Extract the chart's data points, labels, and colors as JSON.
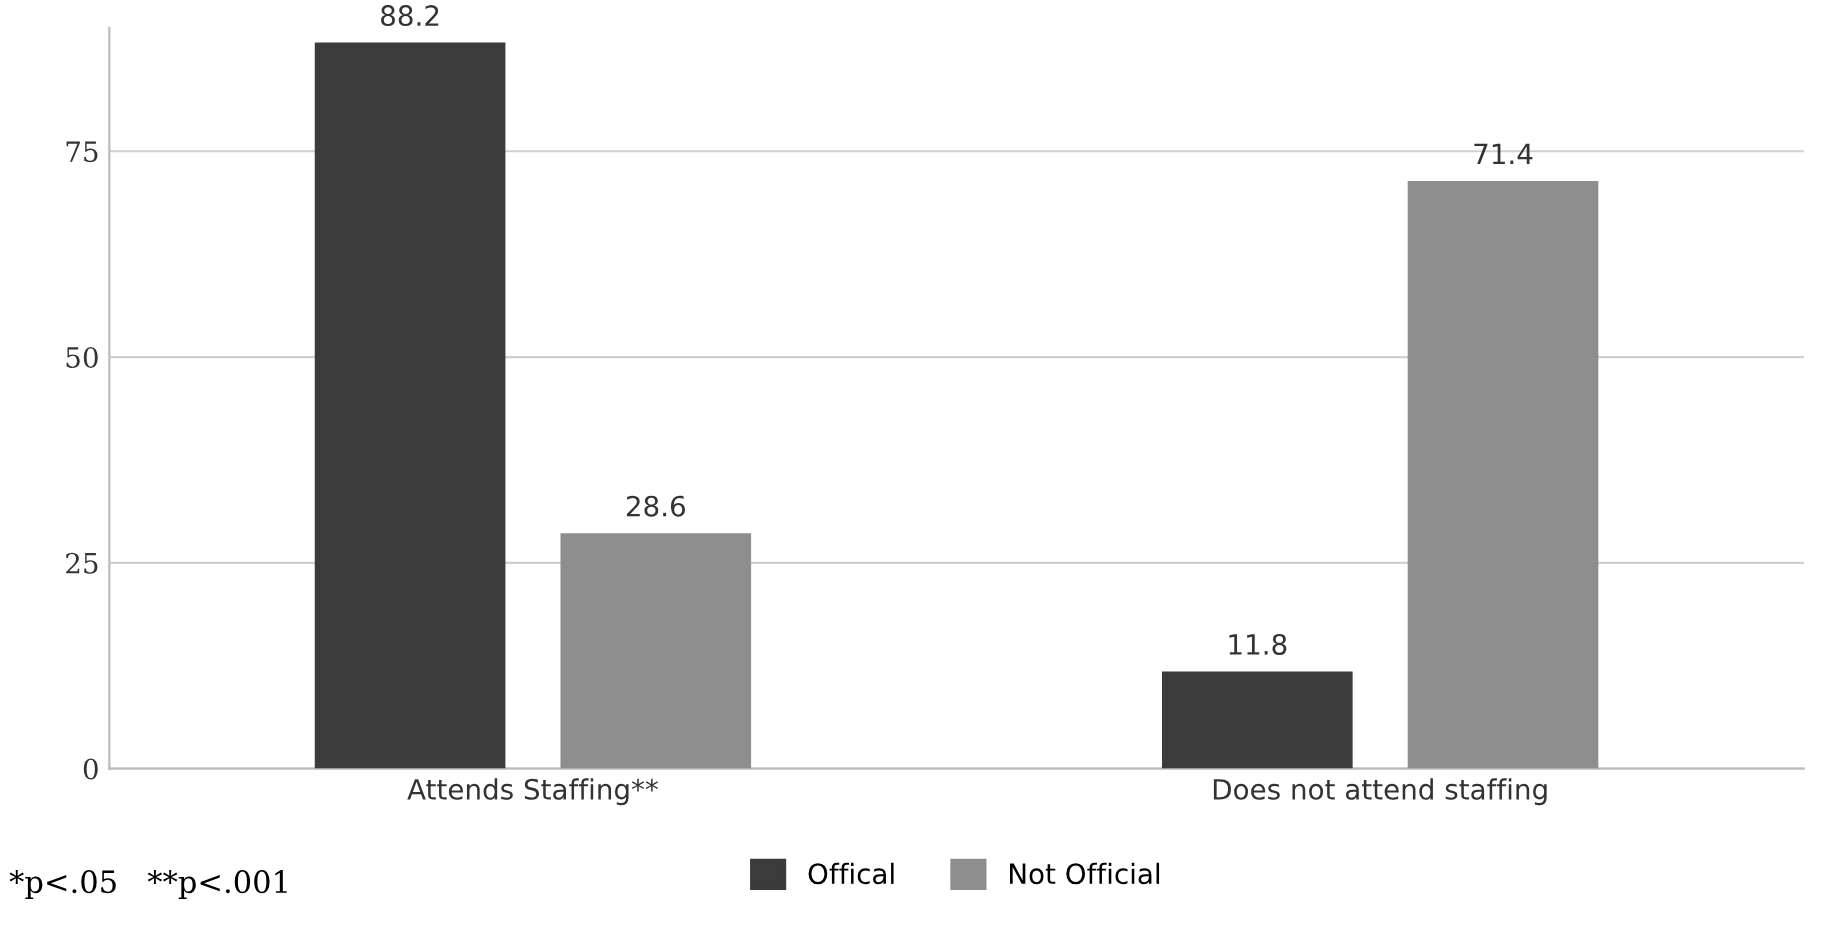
{
  "chart_data": {
    "type": "bar",
    "categories": [
      "Attends Staffing**",
      "Does not attend staffing"
    ],
    "series": [
      {
        "name": "Offical",
        "color": "#3b3b3b",
        "values": [
          88.2,
          11.8
        ]
      },
      {
        "name": "Not Official",
        "color": "#8e8e8e",
        "values": [
          28.6,
          71.4
        ]
      }
    ],
    "ylim": [
      0,
      90
    ],
    "yticks": [
      0,
      25,
      50,
      75
    ],
    "grid": "y",
    "legend": "bottom",
    "data_labels": true,
    "annotations": [
      "*p<.05   **p<.001"
    ]
  }
}
